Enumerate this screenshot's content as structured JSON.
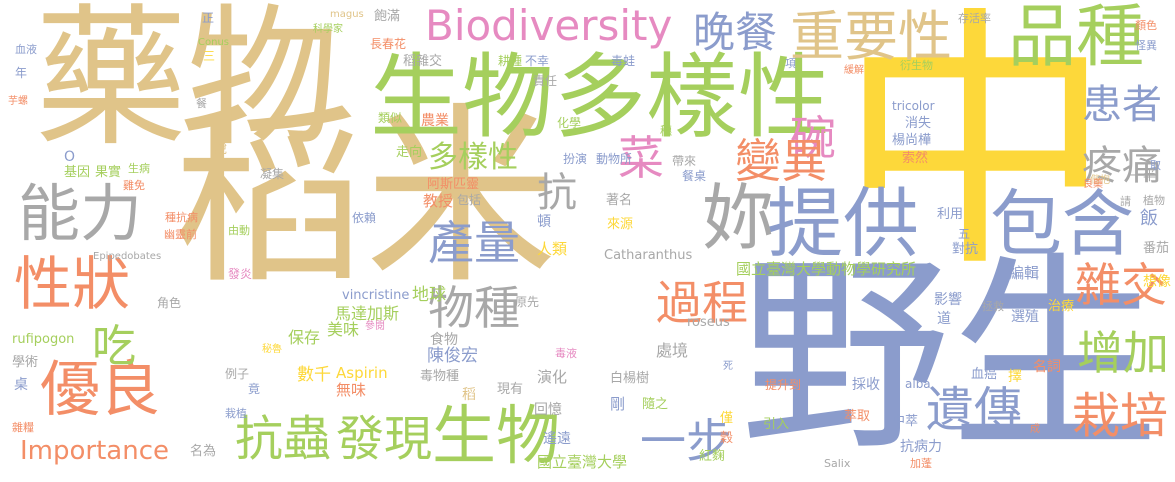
{
  "palette": {
    "tan": "#e0c489",
    "blue": "#8b9ccc",
    "green": "#a5cf5d",
    "yellow": "#fdd83a",
    "gray": "#a8a8a8",
    "orange": "#f38e67",
    "pink": "#e68ac1"
  },
  "words": [
    {
      "text": "稻米",
      "color": "tan"
    },
    {
      "text": "中",
      "color": "yellow"
    },
    {
      "text": "野生",
      "color": "blue"
    },
    {
      "text": "藥物",
      "color": "tan"
    },
    {
      "text": "生物多樣性",
      "color": "green"
    },
    {
      "text": "提供",
      "color": "blue"
    },
    {
      "text": "包含",
      "color": "blue"
    },
    {
      "text": "品種",
      "color": "green"
    },
    {
      "text": "Biodiversity",
      "color": "pink"
    },
    {
      "text": "妳",
      "color": "gray"
    },
    {
      "text": "能力",
      "color": "gray"
    },
    {
      "text": "性狀",
      "color": "orange"
    },
    {
      "text": "優良",
      "color": "orange"
    },
    {
      "text": "重要性",
      "color": "tan"
    },
    {
      "text": "晚餐",
      "color": "blue"
    },
    {
      "text": "生物",
      "color": "green"
    },
    {
      "text": "抗蟲",
      "color": "green"
    },
    {
      "text": "發現",
      "color": "green"
    },
    {
      "text": "遺傳",
      "color": "blue"
    },
    {
      "text": "栽培",
      "color": "orange"
    },
    {
      "text": "增加",
      "color": "green"
    },
    {
      "text": "雜交",
      "color": "orange"
    },
    {
      "text": "疼痛",
      "color": "gray"
    },
    {
      "text": "患者",
      "color": "blue"
    },
    {
      "text": "碗",
      "color": "pink"
    },
    {
      "text": "變異",
      "color": "orange"
    },
    {
      "text": "產量",
      "color": "blue"
    },
    {
      "text": "過程",
      "color": "orange"
    },
    {
      "text": "物種",
      "color": "gray"
    },
    {
      "text": "一步",
      "color": "blue"
    },
    {
      "text": "菜",
      "color": "pink"
    },
    {
      "text": "吃",
      "color": "green"
    },
    {
      "text": "抗",
      "color": "gray"
    },
    {
      "text": "多樣性",
      "color": "green"
    },
    {
      "text": "Importance",
      "color": "orange"
    },
    {
      "text": "國立臺灣大學動物學研究所",
      "color": "green"
    },
    {
      "text": "國立臺灣大學",
      "color": "green"
    },
    {
      "text": "馬達加斯",
      "color": "green"
    },
    {
      "text": "美味",
      "color": "green"
    },
    {
      "text": "保存",
      "color": "green"
    },
    {
      "text": "陳俊宏",
      "color": "blue"
    },
    {
      "text": "數千",
      "color": "yellow"
    },
    {
      "text": "Aspirin",
      "color": "yellow"
    },
    {
      "text": "無味",
      "color": "orange"
    },
    {
      "text": "地球",
      "color": "green"
    },
    {
      "text": "vincristine",
      "color": "blue"
    },
    {
      "text": "Catharanthus",
      "color": "gray"
    },
    {
      "text": "roseus",
      "color": "gray"
    },
    {
      "text": "rufipogon",
      "color": "green"
    },
    {
      "text": "Epipedobates",
      "color": "gray"
    },
    {
      "text": "tricolor",
      "color": "blue"
    },
    {
      "text": "alba",
      "color": "blue"
    },
    {
      "text": "Salix",
      "color": "gray"
    },
    {
      "text": "Conus",
      "color": "green"
    },
    {
      "text": "magus",
      "color": "tan"
    },
    {
      "text": "影響",
      "color": "blue"
    },
    {
      "text": "選殖",
      "color": "blue"
    },
    {
      "text": "名詞",
      "color": "orange"
    },
    {
      "text": "編輯",
      "color": "blue"
    },
    {
      "text": "處境",
      "color": "gray"
    },
    {
      "text": "人類",
      "color": "yellow"
    },
    {
      "text": "教授",
      "color": "orange"
    },
    {
      "text": "頓",
      "color": "blue"
    },
    {
      "text": "著名",
      "color": "gray"
    },
    {
      "text": "來源",
      "color": "yellow"
    },
    {
      "text": "對抗",
      "color": "blue"
    },
    {
      "text": "利用",
      "color": "blue"
    },
    {
      "text": "想像",
      "color": "yellow"
    },
    {
      "text": "番茄",
      "color": "gray"
    },
    {
      "text": "飯",
      "color": "blue"
    },
    {
      "text": "植物",
      "color": "gray"
    },
    {
      "text": "治療",
      "color": "yellow"
    },
    {
      "text": "血癌",
      "color": "blue"
    },
    {
      "text": "採收",
      "color": "blue"
    },
    {
      "text": "提升到",
      "color": "orange"
    },
    {
      "text": "萃取",
      "color": "orange"
    },
    {
      "text": "中萃",
      "color": "blue"
    },
    {
      "text": "抗病力",
      "color": "blue"
    },
    {
      "text": "加蓬",
      "color": "orange"
    },
    {
      "text": "引入",
      "color": "green"
    },
    {
      "text": "遙遠",
      "color": "blue"
    },
    {
      "text": "紅麴",
      "color": "green"
    },
    {
      "text": "隨之",
      "color": "green"
    },
    {
      "text": "剛",
      "color": "blue"
    },
    {
      "text": "回憶",
      "color": "gray"
    },
    {
      "text": "現有",
      "color": "gray"
    },
    {
      "text": "演化",
      "color": "gray"
    },
    {
      "text": "白楊樹",
      "color": "gray"
    },
    {
      "text": "毒液",
      "color": "pink"
    },
    {
      "text": "毒物種",
      "color": "gray"
    },
    {
      "text": "食物",
      "color": "gray"
    },
    {
      "text": "原先",
      "color": "gray"
    },
    {
      "text": "名為",
      "color": "gray"
    },
    {
      "text": "栽植",
      "color": "blue"
    },
    {
      "text": "雜糧",
      "color": "orange"
    },
    {
      "text": "學術",
      "color": "gray"
    },
    {
      "text": "桌",
      "color": "blue"
    },
    {
      "text": "例子",
      "color": "gray"
    },
    {
      "text": "角色",
      "color": "gray"
    },
    {
      "text": "發炎",
      "color": "pink"
    },
    {
      "text": "幽靈前",
      "color": "orange"
    },
    {
      "text": "由動",
      "color": "green"
    },
    {
      "text": "依賴",
      "color": "blue"
    },
    {
      "text": "種抗病",
      "color": "orange"
    },
    {
      "text": "凝集",
      "color": "gray"
    },
    {
      "text": "雞免",
      "color": "orange"
    },
    {
      "text": "生病",
      "color": "green"
    },
    {
      "text": "基因",
      "color": "green"
    },
    {
      "text": "果實",
      "color": "green"
    },
    {
      "text": "走向",
      "color": "green"
    },
    {
      "text": "阿斯匹靈",
      "color": "orange"
    },
    {
      "text": "包括",
      "color": "gray"
    },
    {
      "text": "扮演",
      "color": "blue"
    },
    {
      "text": "動物所",
      "color": "blue"
    },
    {
      "text": "帶來",
      "color": "gray"
    },
    {
      "text": "餐桌",
      "color": "blue"
    },
    {
      "text": "消失",
      "color": "blue"
    },
    {
      "text": "楊尚樺",
      "color": "blue"
    },
    {
      "text": "索然",
      "color": "orange"
    },
    {
      "text": "一半",
      "color": "gray"
    },
    {
      "text": "稻雜交",
      "color": "gray"
    },
    {
      "text": "耕種",
      "color": "green"
    },
    {
      "text": "不幸",
      "color": "blue"
    },
    {
      "text": "毒蛙",
      "color": "blue"
    },
    {
      "text": "責任",
      "color": "gray"
    },
    {
      "text": "類似",
      "color": "green"
    },
    {
      "text": "農業",
      "color": "orange"
    },
    {
      "text": "化學",
      "color": "green"
    },
    {
      "text": "長春花",
      "color": "orange"
    },
    {
      "text": "科學家",
      "color": "green"
    },
    {
      "text": "飽滿",
      "color": "gray"
    },
    {
      "text": "存活率",
      "color": "gray"
    },
    {
      "text": "衍生物",
      "color": "green"
    },
    {
      "text": "緩解",
      "color": "orange"
    },
    {
      "text": "顏色",
      "color": "orange"
    },
    {
      "text": "怪異",
      "color": "blue"
    },
    {
      "text": "血液",
      "color": "blue"
    },
    {
      "text": "年",
      "color": "blue"
    },
    {
      "text": "芋螺",
      "color": "orange"
    },
    {
      "text": "餐",
      "color": "gray"
    },
    {
      "text": "說",
      "color": "tan"
    },
    {
      "text": "正",
      "color": "blue"
    },
    {
      "text": "三",
      "color": "yellow"
    },
    {
      "text": "項",
      "color": "blue"
    },
    {
      "text": "五",
      "color": "blue"
    },
    {
      "text": "取",
      "color": "blue"
    },
    {
      "text": "請",
      "color": "gray"
    },
    {
      "text": "死",
      "color": "blue"
    },
    {
      "text": "成",
      "color": "orange"
    },
    {
      "text": "稻",
      "color": "tan"
    },
    {
      "text": "穗",
      "color": "green"
    },
    {
      "text": "秘魯",
      "color": "yellow"
    },
    {
      "text": "參閱",
      "color": "pink"
    },
    {
      "text": "道",
      "color": "blue"
    },
    {
      "text": "擇",
      "color": "yellow"
    },
    {
      "text": "僅",
      "color": "yellow"
    },
    {
      "text": "穀",
      "color": "orange"
    },
    {
      "text": "竟",
      "color": "blue"
    },
    {
      "text": "拯救",
      "color": "gray"
    },
    {
      "text": "偕抱",
      "color": "tan"
    },
    {
      "text": "良藥",
      "color": "orange"
    },
    {
      "text": "O",
      "color": "blue"
    }
  ]
}
